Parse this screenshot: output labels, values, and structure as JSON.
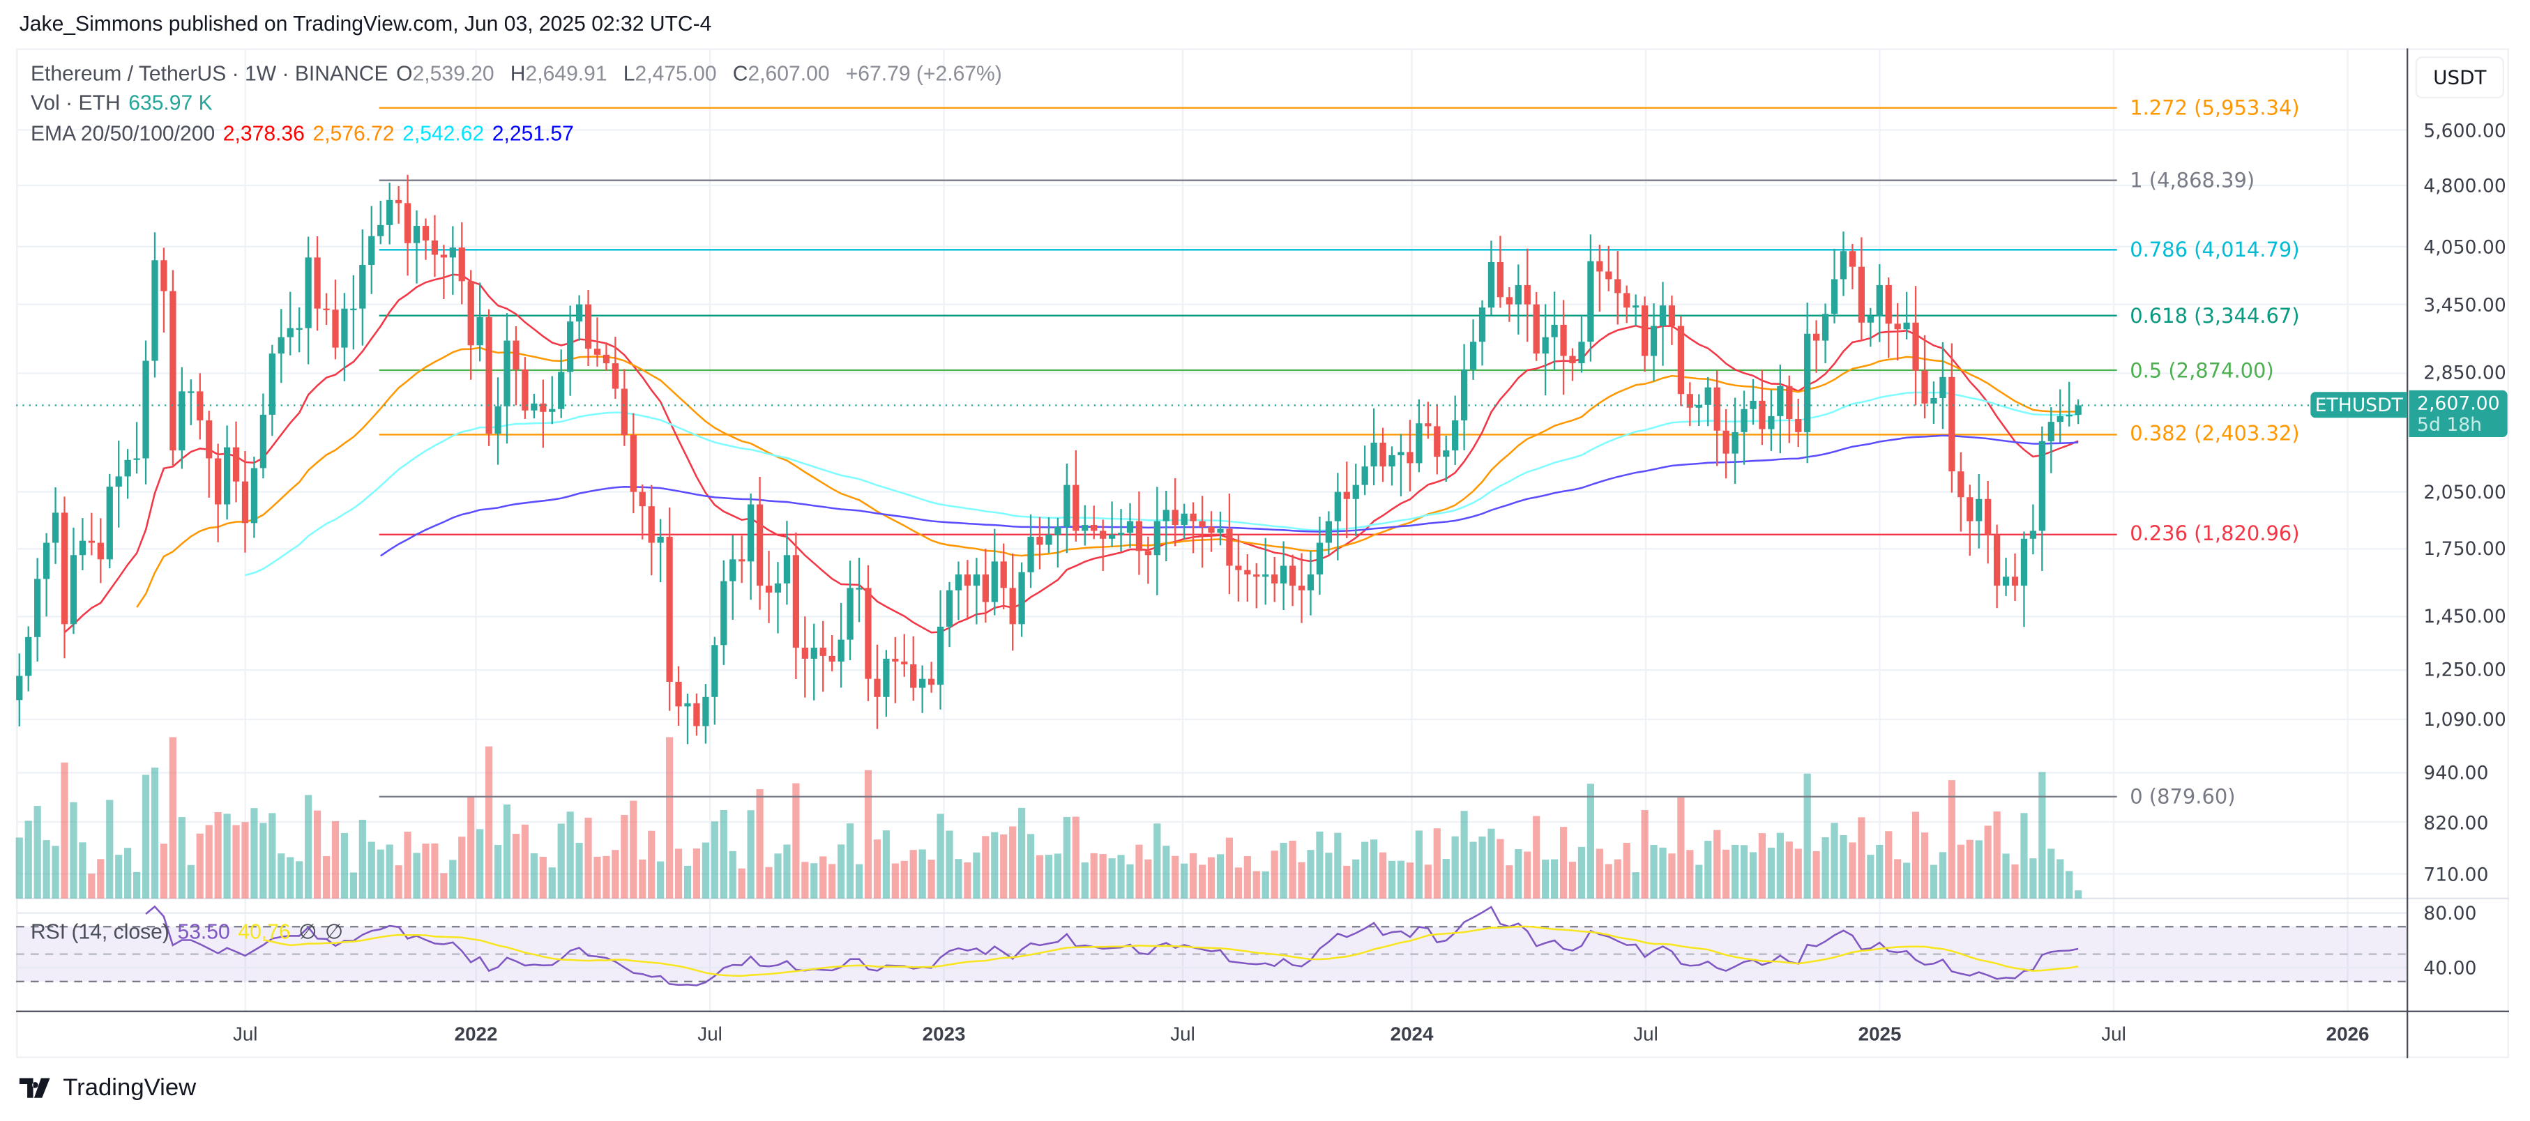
{
  "publish_line": "Jake_Simmons published on TradingView.com, Jun 03, 2025 02:32 UTC-4",
  "legend": {
    "symbol": "Ethereum / TetherUS · 1W · BINANCE",
    "o_label": "O",
    "o": "2,539.20",
    "h_label": "H",
    "h": "2,649.91",
    "l_label": "L",
    "l": "2,475.00",
    "c_label": "C",
    "c": "2,607.00",
    "change": "+67.79 (+2.67%)",
    "vol_label": "Vol · ETH",
    "vol": "635.97 K",
    "ema_label": "EMA 20/50/100/200",
    "ema_values": [
      "2,378.36",
      "2,576.72",
      "2,542.62",
      "2,251.57"
    ],
    "ema_colors": [
      "#ff0000",
      "#ff8c00",
      "#00e5ff",
      "#0000ff"
    ],
    "rsi_label": "RSI (14, close)",
    "rsi": "53.50",
    "rsi_ma": "40.76",
    "rsi_na1": "∅",
    "rsi_na2": "∅"
  },
  "price_axis": {
    "currency": "USDT",
    "ticks": [
      "5,600.00",
      "4,800.00",
      "4,050.00",
      "3,450.00",
      "2,850.00",
      "2,050.00",
      "1,750.00",
      "1,450.00",
      "1,250.00",
      "1,090.00",
      "940.00",
      "820.00",
      "710.00"
    ],
    "rsi_ticks": [
      "80.00",
      "40.00"
    ]
  },
  "last_price": {
    "symbol": "ETHUSDT",
    "price": "2,607.00",
    "countdown": "5d 18h"
  },
  "time_axis": [
    {
      "label": "Jul",
      "year": false
    },
    {
      "label": "2022",
      "year": true
    },
    {
      "label": "Jul",
      "year": false
    },
    {
      "label": "2023",
      "year": true
    },
    {
      "label": "Jul",
      "year": false
    },
    {
      "label": "2024",
      "year": true
    },
    {
      "label": "Jul",
      "year": false
    },
    {
      "label": "2025",
      "year": true
    },
    {
      "label": "Jul",
      "year": false
    },
    {
      "label": "2026",
      "year": true
    }
  ],
  "fib_levels": [
    {
      "label": "1.272 (5,953.34)",
      "price": 5953.34,
      "color": "#ff9800"
    },
    {
      "label": "1 (4,868.39)",
      "price": 4868.39,
      "color": "#787b86"
    },
    {
      "label": "0.786 (4,014.79)",
      "price": 4014.79,
      "color": "#00bcd4"
    },
    {
      "label": "0.618 (3,344.67)",
      "price": 3344.67,
      "color": "#089981"
    },
    {
      "label": "0.5 (2,874.00)",
      "price": 2874.0,
      "color": "#4caf50"
    },
    {
      "label": "0.382 (2,403.32)",
      "price": 2403.32,
      "color": "#ff9800"
    },
    {
      "label": "0.236 (1,820.96)",
      "price": 1820.96,
      "color": "#f23645"
    },
    {
      "label": "0 (879.60)",
      "price": 879.6,
      "color": "#787b86"
    }
  ],
  "logo": "TradingView",
  "chart_data": {
    "type": "candlestick",
    "interval": "1W",
    "y_scale": "log",
    "ylim": [
      650,
      6300
    ],
    "first_week": "2021-01-18",
    "last_candle": {
      "open": 2539.2,
      "high": 2649.91,
      "low": 2475.0,
      "close": 2607.0
    },
    "colors": {
      "up": "#26a69a",
      "down": "#ef5350"
    },
    "indicators": [
      "EMA 20",
      "EMA 50",
      "EMA 100",
      "EMA 200",
      "Volume",
      "RSI 14"
    ],
    "rsi_bands": [
      70,
      50,
      30
    ],
    "grid": true,
    "weekly_close": [
      1230,
      1370,
      1610,
      1780,
      1935,
      1420,
      1720,
      1790,
      1780,
      1700,
      2080,
      2140,
      2240,
      2250,
      2950,
      3900,
      3580,
      2300,
      2710,
      2710,
      2500,
      2250,
      1980,
      2320,
      2110,
      1880,
      2190,
      2540,
      3010,
      3150,
      3230,
      3230,
      3930,
      3410,
      3400,
      3060,
      3410,
      3410,
      3850,
      4170,
      4300,
      4610,
      4570,
      4090,
      4290,
      4120,
      3960,
      3930,
      4040,
      3680,
      3080,
      3330,
      2410,
      2600,
      3120,
      2880,
      2570,
      2620,
      2560,
      2580,
      2860,
      3290,
      3450,
      3050,
      3000,
      2930,
      2730,
      2400,
      2050,
      1970,
      1780,
      1810,
      1210,
      1130,
      1140,
      1070,
      1160,
      1340,
      1600,
      1700,
      1690,
      1980,
      1580,
      1550,
      1590,
      1720,
      1330,
      1290,
      1330,
      1300,
      1280,
      1360,
      1570,
      1570,
      1220,
      1160,
      1290,
      1280,
      1270,
      1190,
      1220,
      1200,
      1410,
      1560,
      1630,
      1580,
      1630,
      1510,
      1690,
      1570,
      1420,
      1640,
      1810,
      1770,
      1820,
      1860,
      2090,
      1840,
      1870,
      1840,
      1800,
      1820,
      1830,
      1890,
      1740,
      1720,
      1890,
      1950,
      1870,
      1930,
      1890,
      1860,
      1830,
      1850,
      1670,
      1650,
      1630,
      1620,
      1630,
      1590,
      1670,
      1580,
      1560,
      1630,
      1780,
      1890,
      2050,
      2010,
      2090,
      2200,
      2350,
      2200,
      2270,
      2290,
      2220,
      2480,
      2460,
      2260,
      2300,
      2500,
      2880,
      3110,
      3420,
      3880,
      3520,
      3450,
      3640,
      3450,
      3010,
      3150,
      3260,
      2990,
      2930,
      3110,
      3890,
      3780,
      3700,
      3560,
      3420,
      3440,
      2990,
      3250,
      3440,
      3250,
      2690,
      2590,
      2610,
      2740,
      2430,
      2280,
      2420,
      2580,
      2640,
      2440,
      2530,
      2750,
      2510,
      2420,
      3180,
      3120,
      3360,
      3700,
      4000,
      3830,
      3280,
      3340,
      3640,
      3270,
      3220,
      3280,
      2870,
      2620,
      2660,
      2820,
      2170,
      2020,
      1890,
      2010,
      1820,
      1580,
      1620,
      1580,
      1800,
      1840,
      2360,
      2490,
      2530,
      2539.2,
      2607
    ]
  }
}
